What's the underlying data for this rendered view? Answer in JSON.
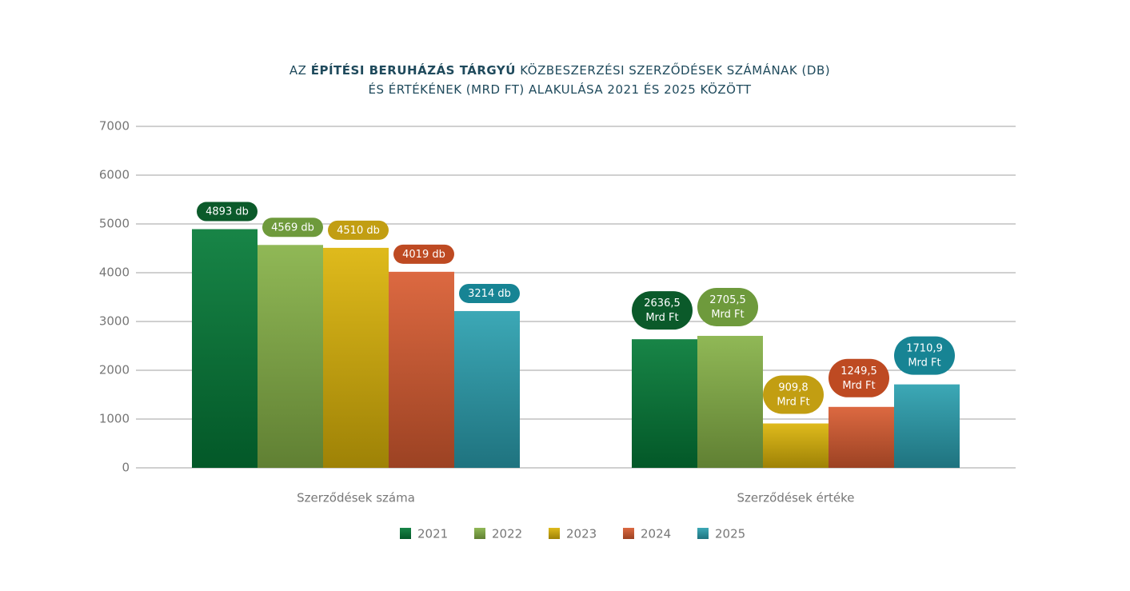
{
  "chart_data": {
    "type": "bar",
    "title": {
      "prefix": "AZ",
      "bold": "ÉPÍTÉSI BERUHÁZÁS TÁRGYÚ",
      "rest": "KÖZBESZERZÉSI SZERZŐDÉSEK SZÁMÁNAK (DB)",
      "line2": "ÉS ÉRTÉKÉNEK (MRD FT) ALAKULÁSA 2021 ÉS 2025 KÖZÖTT"
    },
    "categories": [
      "Szerződések száma",
      "Szerződések értéke"
    ],
    "series": [
      {
        "name": "2021",
        "color": "#047a37",
        "label_color": "#0b5a2a",
        "values": [
          4893,
          2636.5
        ],
        "value_labels": [
          "4893 db",
          "2636,5 Mrd Ft"
        ]
      },
      {
        "name": "2022",
        "color": "#86b247",
        "label_color": "#6e9a3c",
        "values": [
          4569,
          2705.5
        ],
        "value_labels": [
          "4569 db",
          "2705,5 Mrd Ft"
        ]
      },
      {
        "name": "2023",
        "color": "#dcb408",
        "label_color": "#c29e12",
        "values": [
          4510,
          909.8
        ],
        "value_labels": [
          "4510 db",
          "909,8 Mrd Ft"
        ]
      },
      {
        "name": "2024",
        "color": "#d95c30",
        "label_color": "#be4a22",
        "values": [
          4019,
          1249.5
        ],
        "value_labels": [
          "4019 db",
          "1249,5 Mrd Ft"
        ]
      },
      {
        "name": "2025",
        "color": "#2ba0b0",
        "label_color": "#178494",
        "values": [
          3214,
          1710.9
        ],
        "value_labels": [
          "3214 db",
          "1710,9 Mrd Ft"
        ]
      }
    ],
    "ylim": [
      0,
      7000
    ],
    "yticks": [
      0,
      1000,
      2000,
      3000,
      4000,
      5000,
      6000,
      7000
    ],
    "grid": true
  }
}
